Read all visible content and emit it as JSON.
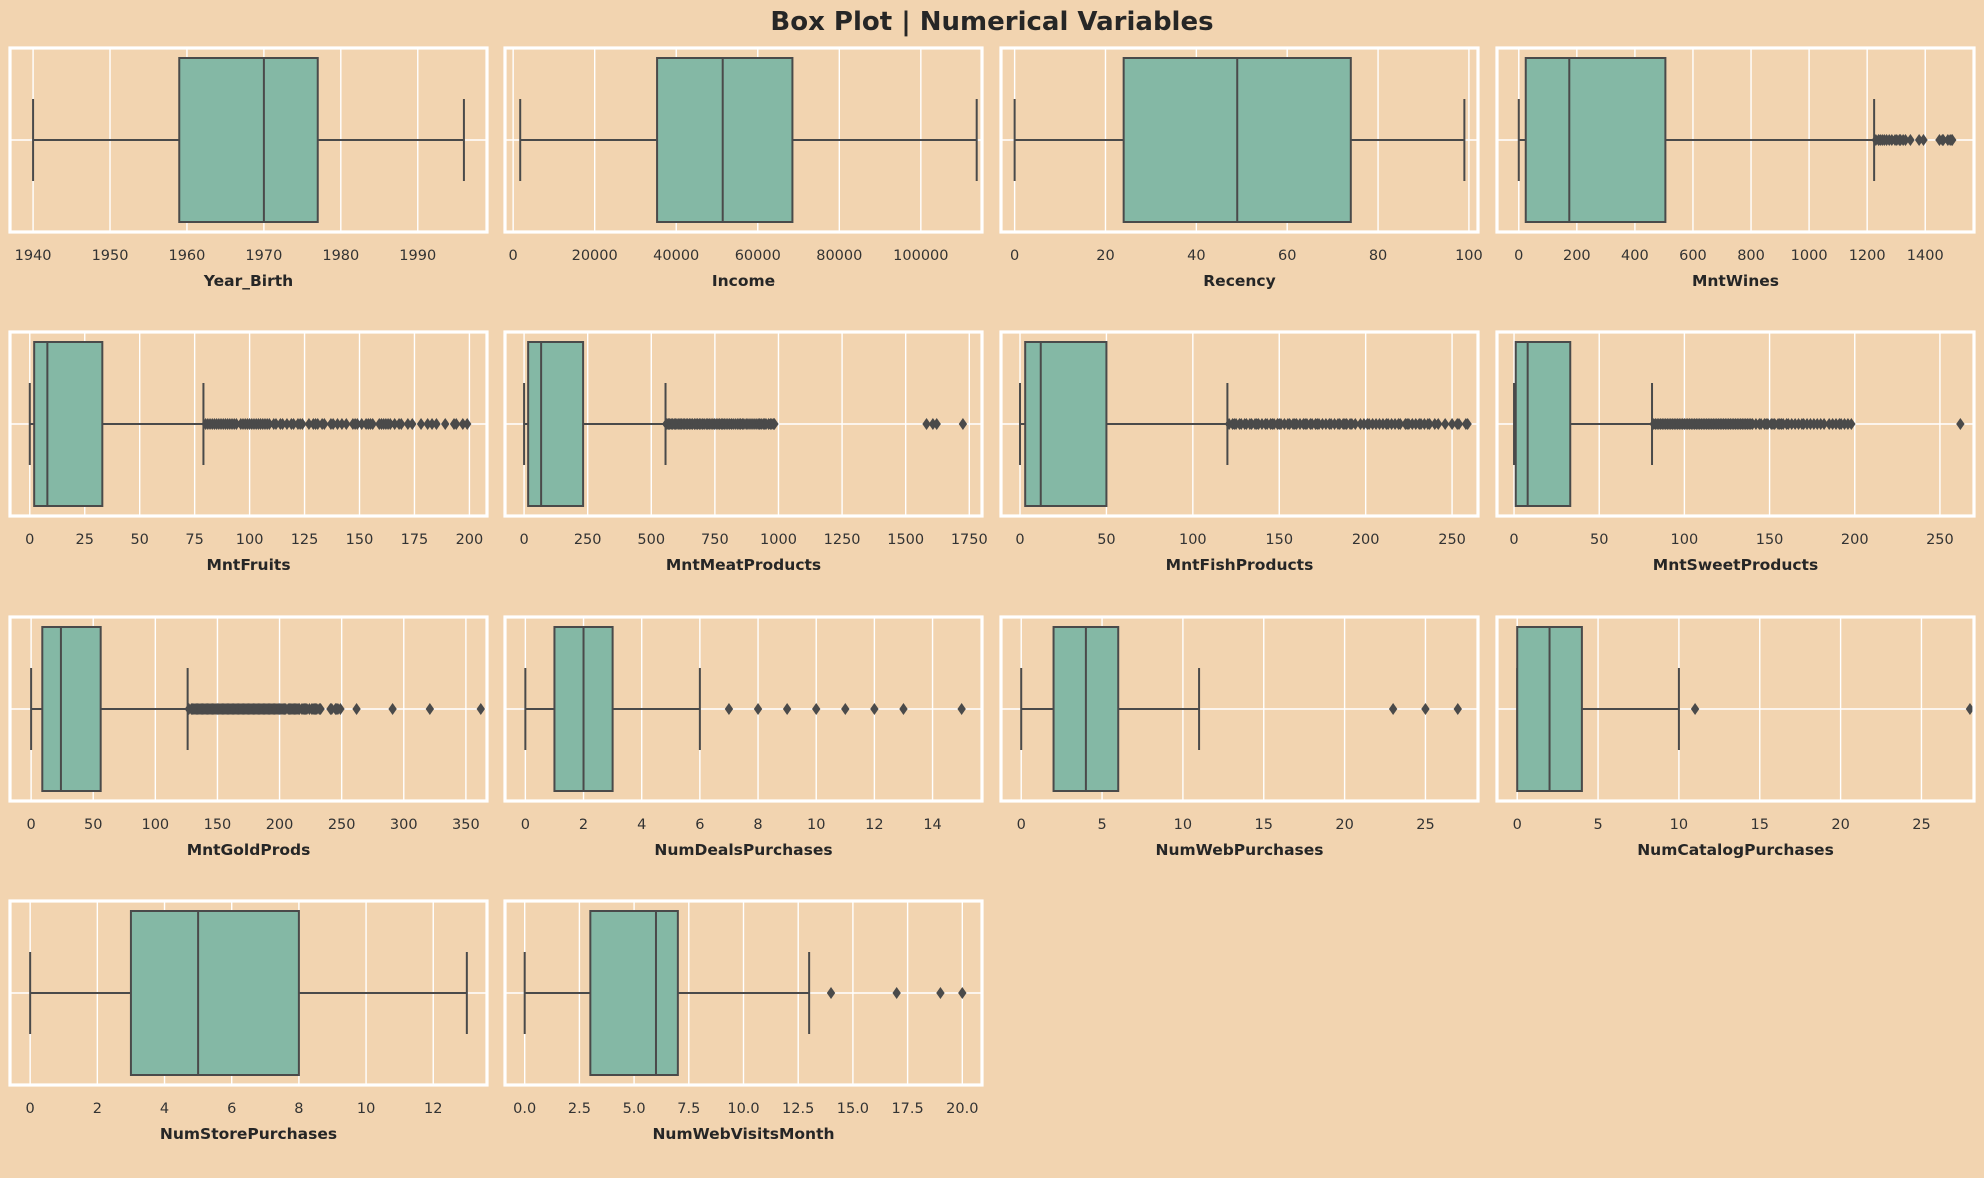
{
  "title": "Box Plot | Numerical Variables",
  "colors": {
    "background": "#f2d4b0",
    "box_fill": "#84b8a5",
    "line": "#4a4a4a",
    "grid": "#ffffff"
  },
  "chart_data": [
    {
      "type": "box",
      "orientation": "horizontal",
      "xlabel": "Year_Birth",
      "xlim": [
        1937,
        1999
      ],
      "ticks": [
        1940,
        1950,
        1960,
        1970,
        1980,
        1990
      ],
      "grid": true,
      "stats": {
        "whislo": 1940,
        "q1": 1959,
        "median": 1970,
        "q3": 1977,
        "whishi": 1996
      },
      "fliers": []
    },
    {
      "type": "box",
      "orientation": "horizontal",
      "xlabel": "Income",
      "xlim": [
        -2000,
        115000
      ],
      "ticks": [
        0,
        20000,
        40000,
        60000,
        80000,
        100000
      ],
      "grid": true,
      "stats": {
        "whislo": 1730,
        "q1": 35300,
        "median": 51400,
        "q3": 68500,
        "whishi": 113700
      },
      "fliers": []
    },
    {
      "type": "box",
      "orientation": "horizontal",
      "xlabel": "Recency",
      "xlim": [
        -3,
        102
      ],
      "ticks": [
        0,
        20,
        40,
        60,
        80,
        100
      ],
      "grid": true,
      "stats": {
        "whislo": 0,
        "q1": 24,
        "median": 49,
        "q3": 74,
        "whishi": 99
      },
      "fliers": []
    },
    {
      "type": "box",
      "orientation": "horizontal",
      "xlabel": "MntWines",
      "xlim": [
        -75,
        1568
      ],
      "ticks": [
        0,
        200,
        400,
        600,
        800,
        1000,
        1200,
        1400
      ],
      "grid": true,
      "stats": {
        "whislo": 0,
        "q1": 24,
        "median": 174,
        "q3": 505,
        "whishi": 1224
      },
      "fliers": [
        1230,
        1239,
        1245,
        1252,
        1259,
        1267,
        1276,
        1285,
        1296,
        1302,
        1311,
        1315,
        1324,
        1332,
        1349,
        1379,
        1394,
        1449,
        1459,
        1462,
        1478,
        1486,
        1492,
        1493
      ]
    },
    {
      "type": "box",
      "orientation": "horizontal",
      "xlabel": "MntFruits",
      "xlim": [
        -9,
        208
      ],
      "ticks": [
        0,
        25,
        50,
        75,
        100,
        125,
        150,
        175,
        200
      ],
      "grid": true,
      "stats": {
        "whislo": 0,
        "q1": 2,
        "median": 8,
        "q3": 33,
        "whishi": 79
      },
      "fliers": [
        80,
        81,
        82,
        83,
        84,
        85,
        86,
        87,
        88,
        89,
        90,
        91,
        92,
        93,
        94,
        96,
        97,
        98,
        99,
        100,
        101,
        102,
        103,
        104,
        105,
        106,
        107,
        108,
        109,
        111,
        112,
        114,
        115,
        117,
        119,
        120,
        122,
        123,
        124,
        127,
        129,
        130,
        131,
        133,
        134,
        137,
        138,
        140,
        142,
        144,
        147,
        148,
        149,
        151,
        153,
        154,
        155,
        156,
        159,
        160,
        161,
        162,
        163,
        164,
        166,
        168,
        169,
        172,
        174,
        178,
        181,
        183,
        185,
        189,
        193,
        194,
        197,
        199
      ]
    },
    {
      "type": "box",
      "orientation": "horizontal",
      "xlabel": "MntMeatProducts",
      "xlim": [
        -75,
        1800
      ],
      "ticks": [
        0,
        250,
        500,
        750,
        1000,
        1250,
        1500,
        1750
      ],
      "grid": true,
      "stats": {
        "whislo": 0,
        "q1": 16,
        "median": 67,
        "q3": 232,
        "whishi": 556
      },
      "fliers": [
        559,
        562,
        568,
        572,
        578,
        583,
        590,
        595,
        601,
        608,
        613,
        618,
        625,
        630,
        637,
        643,
        650,
        656,
        662,
        670,
        676,
        682,
        689,
        695,
        702,
        708,
        716,
        722,
        728,
        735,
        742,
        748,
        755,
        762,
        768,
        775,
        781,
        787,
        794,
        801,
        808,
        815,
        822,
        830,
        838,
        845,
        851,
        858,
        864,
        873,
        880,
        888,
        896,
        904,
        912,
        920,
        926,
        932,
        940,
        946,
        951,
        961,
        968,
        974,
        981,
        984,
        1725,
        1582,
        1607,
        1622
      ]
    },
    {
      "type": "box",
      "orientation": "horizontal",
      "xlabel": "MntFishProducts",
      "xlim": [
        -11,
        265
      ],
      "ticks": [
        0,
        50,
        100,
        150,
        200,
        250
      ],
      "grid": true,
      "stats": {
        "whislo": 0,
        "q1": 3,
        "median": 12,
        "q3": 50,
        "whishi": 120
      },
      "fliers": [
        121,
        123,
        124,
        125,
        127,
        128,
        130,
        131,
        133,
        134,
        136,
        137,
        138,
        140,
        142,
        143,
        145,
        146,
        147,
        149,
        150,
        151,
        153,
        155,
        156,
        158,
        159,
        160,
        162,
        164,
        165,
        166,
        168,
        169,
        171,
        172,
        173,
        175,
        177,
        179,
        180,
        182,
        184,
        185,
        187,
        188,
        189,
        191,
        192,
        194,
        197,
        199,
        201,
        202,
        204,
        206,
        208,
        210,
        212,
        213,
        215,
        217,
        219,
        220,
        223,
        224,
        225,
        227,
        229,
        231,
        232,
        234,
        236,
        237,
        240,
        242,
        246,
        250,
        253,
        254,
        258,
        259
      ]
    },
    {
      "type": "box",
      "orientation": "horizontal",
      "xlabel": "MntSweetProducts",
      "xlim": [
        -10,
        270
      ],
      "ticks": [
        0,
        50,
        100,
        150,
        200,
        250
      ],
      "grid": true,
      "stats": {
        "whislo": 0,
        "q1": 1,
        "median": 8,
        "q3": 33,
        "whishi": 81
      },
      "fliers": [
        82,
        83,
        84,
        85,
        86,
        87,
        88,
        89,
        90,
        91,
        92,
        93,
        94,
        95,
        96,
        97,
        98,
        99,
        100,
        101,
        102,
        103,
        104,
        105,
        106,
        107,
        108,
        109,
        110,
        111,
        112,
        113,
        114,
        115,
        116,
        117,
        118,
        119,
        120,
        121,
        122,
        123,
        124,
        125,
        126,
        127,
        128,
        129,
        130,
        131,
        132,
        133,
        134,
        135,
        136,
        137,
        138,
        139,
        140,
        142,
        144,
        145,
        147,
        148,
        149,
        151,
        152,
        153,
        155,
        156,
        157,
        158,
        160,
        161,
        163,
        165,
        167,
        169,
        170,
        172,
        174,
        176,
        178,
        180,
        182,
        185,
        187,
        189,
        191,
        192,
        194,
        196,
        198,
        262
      ]
    },
    {
      "type": "box",
      "orientation": "horizontal",
      "xlabel": "MntGoldProds",
      "xlim": [
        -17,
        367
      ],
      "ticks": [
        0,
        50,
        100,
        150,
        200,
        250,
        300,
        350
      ],
      "grid": true,
      "stats": {
        "whislo": 0,
        "q1": 9,
        "median": 24,
        "q3": 56,
        "whishi": 126
      },
      "fliers": [
        127,
        129,
        130,
        131,
        132,
        133,
        134,
        135,
        136,
        137,
        138,
        139,
        140,
        141,
        142,
        143,
        144,
        145,
        146,
        147,
        148,
        149,
        150,
        151,
        152,
        153,
        154,
        155,
        156,
        157,
        158,
        159,
        160,
        161,
        162,
        163,
        164,
        165,
        166,
        167,
        168,
        169,
        170,
        171,
        172,
        173,
        174,
        175,
        176,
        177,
        178,
        179,
        180,
        181,
        182,
        183,
        184,
        185,
        186,
        187,
        188,
        189,
        190,
        191,
        192,
        193,
        194,
        195,
        196,
        197,
        198,
        199,
        200,
        201,
        202,
        203,
        204,
        205,
        207,
        208,
        209,
        210,
        211,
        212,
        213,
        214,
        215,
        216,
        218,
        219,
        220,
        221,
        222,
        224,
        226,
        227,
        228,
        229,
        230,
        232,
        233,
        241,
        242,
        245,
        246,
        247,
        249,
        262,
        291,
        321,
        362
      ]
    },
    {
      "type": "box",
      "orientation": "horizontal",
      "xlabel": "NumDealsPurchases",
      "xlim": [
        -0.7,
        15.7
      ],
      "ticks": [
        0,
        2,
        4,
        6,
        8,
        10,
        12,
        14
      ],
      "grid": true,
      "stats": {
        "whislo": 0,
        "q1": 1,
        "median": 2,
        "q3": 3,
        "whishi": 6
      },
      "fliers": [
        7,
        8,
        9,
        10,
        11,
        12,
        13,
        15
      ]
    },
    {
      "type": "box",
      "orientation": "horizontal",
      "xlabel": "NumWebPurchases",
      "xlim": [
        -1.25,
        28.25
      ],
      "ticks": [
        0,
        5,
        10,
        15,
        20,
        25
      ],
      "grid": true,
      "stats": {
        "whislo": 0,
        "q1": 2,
        "median": 4,
        "q3": 6,
        "whishi": 11
      },
      "fliers": [
        23,
        25,
        27
      ]
    },
    {
      "type": "box",
      "orientation": "horizontal",
      "xlabel": "NumCatalogPurchases",
      "xlim": [
        -1.25,
        28.25
      ],
      "ticks": [
        0,
        5,
        10,
        15,
        20,
        25
      ],
      "grid": true,
      "stats": {
        "whislo": 0,
        "q1": 0,
        "median": 2,
        "q3": 4,
        "whishi": 10
      },
      "fliers": [
        11,
        28
      ]
    },
    {
      "type": "box",
      "orientation": "horizontal",
      "xlabel": "NumStorePurchases",
      "xlim": [
        -0.6,
        13.6
      ],
      "ticks": [
        0,
        2,
        4,
        6,
        8,
        10,
        12
      ],
      "grid": true,
      "stats": {
        "whislo": 0,
        "q1": 3,
        "median": 5,
        "q3": 8,
        "whishi": 13
      },
      "fliers": []
    },
    {
      "type": "box",
      "orientation": "horizontal",
      "xlabel": "NumWebVisitsMonth",
      "xlim": [
        -0.9,
        20.9
      ],
      "ticks": [
        "0.0",
        "2.5",
        "5.0",
        "7.5",
        "10.0",
        "12.5",
        "15.0",
        "17.5",
        "20.0"
      ],
      "grid": true,
      "stats": {
        "whislo": 0,
        "q1": 3,
        "median": 6,
        "q3": 7,
        "whishi": 13
      },
      "fliers": [
        14,
        17,
        19,
        20
      ]
    }
  ]
}
